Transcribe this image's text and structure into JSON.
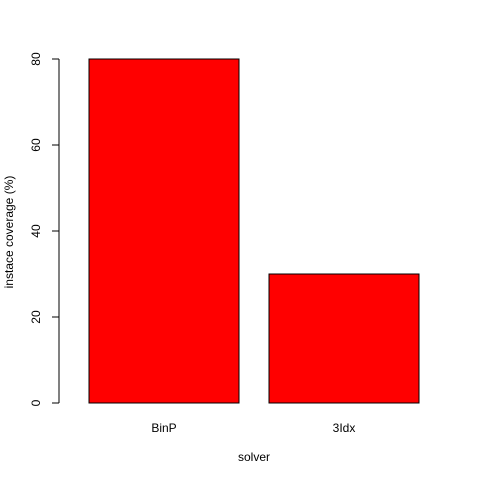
{
  "chart_data": {
    "type": "bar",
    "categories": [
      "BinP",
      "3Idx"
    ],
    "values": [
      80,
      30
    ],
    "xlabel": "solver",
    "ylabel": "instace coverage (%)",
    "ylim": [
      0,
      80
    ],
    "yticks": [
      0,
      20,
      40,
      60,
      80
    ],
    "bar_color": "#ff0000",
    "bar_border_color": "#000000",
    "grid": false,
    "legend": "none"
  }
}
